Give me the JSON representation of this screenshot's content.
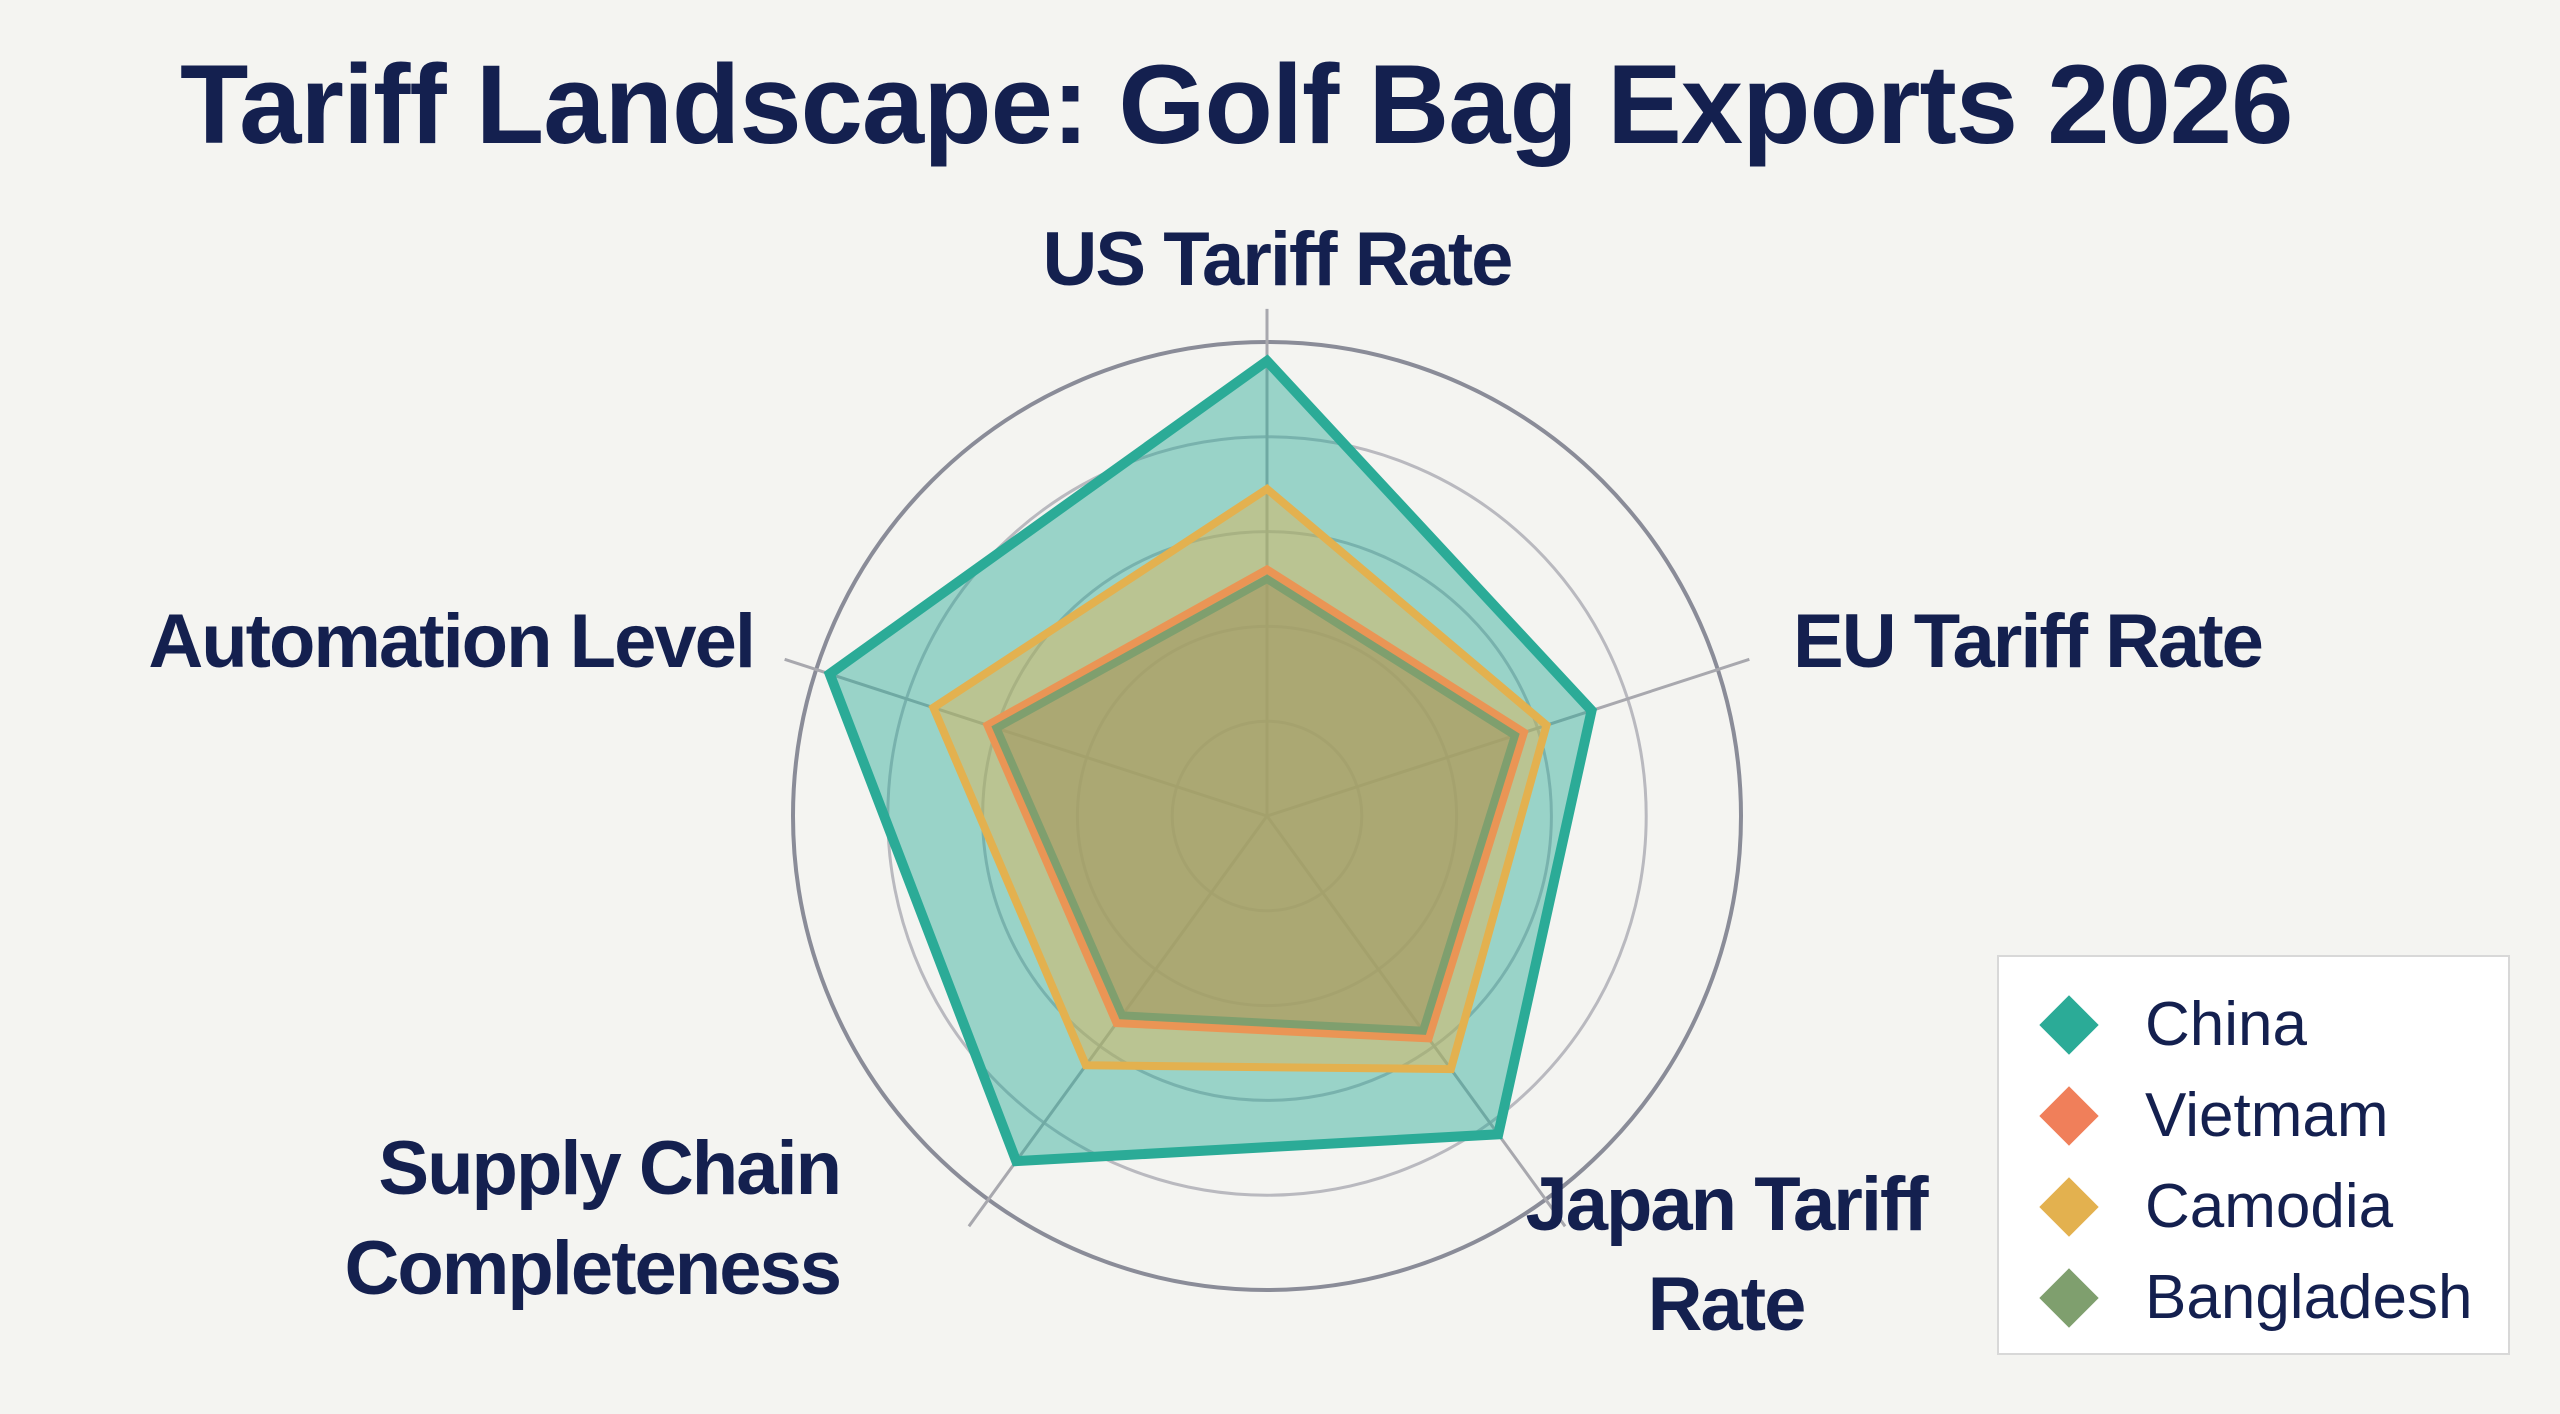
{
  "chart_data": {
    "type": "radar",
    "title": "Tariff Landscape: Golf Bag Exports 2026",
    "categories": [
      "US Tariff Rate",
      "EU Tariff Rate",
      "Japan Tariff Rate",
      "Supply Chain Completeness",
      "Automation Level"
    ],
    "rlim": [
      0,
      100
    ],
    "rticks": [
      20,
      40,
      60,
      80,
      100
    ],
    "grid": true,
    "series": [
      {
        "name": "China",
        "color": "#2bab97",
        "values": [
          96,
          72,
          83,
          90,
          97
        ]
      },
      {
        "name": "Vietmam",
        "color": "#f07f5a",
        "values": [
          52,
          57,
          58,
          54,
          62
        ]
      },
      {
        "name": "Camodia",
        "color": "#e3b14f",
        "values": [
          69,
          62,
          66,
          65,
          74
        ]
      },
      {
        "name": "Bangladesh",
        "color": "#7f9f6e",
        "values": [
          50,
          55,
          56,
          52,
          60
        ]
      }
    ]
  }
}
